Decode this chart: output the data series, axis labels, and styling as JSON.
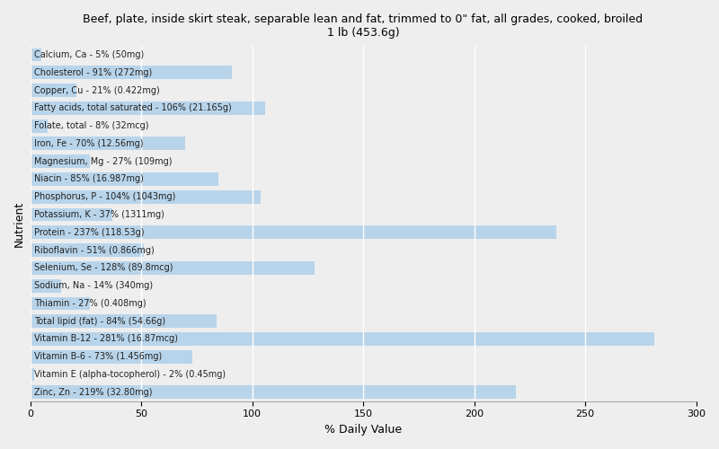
{
  "title": "Beef, plate, inside skirt steak, separable lean and fat, trimmed to 0\" fat, all grades, cooked, broiled\n1 lb (453.6g)",
  "xlabel": "% Daily Value",
  "ylabel": "Nutrient",
  "xlim": [
    0,
    300
  ],
  "xticks": [
    0,
    50,
    100,
    150,
    200,
    250,
    300
  ],
  "background_color": "#eeeeee",
  "bar_color": "#b8d4ea",
  "grid_color": "#ffffff",
  "nutrients": [
    {
      "label": "Calcium, Ca - 5% (50mg)",
      "value": 5
    },
    {
      "label": "Cholesterol - 91% (272mg)",
      "value": 91
    },
    {
      "label": "Copper, Cu - 21% (0.422mg)",
      "value": 21
    },
    {
      "label": "Fatty acids, total saturated - 106% (21.165g)",
      "value": 106
    },
    {
      "label": "Folate, total - 8% (32mcg)",
      "value": 8
    },
    {
      "label": "Iron, Fe - 70% (12.56mg)",
      "value": 70
    },
    {
      "label": "Magnesium, Mg - 27% (109mg)",
      "value": 27
    },
    {
      "label": "Niacin - 85% (16.987mg)",
      "value": 85
    },
    {
      "label": "Phosphorus, P - 104% (1043mg)",
      "value": 104
    },
    {
      "label": "Potassium, K - 37% (1311mg)",
      "value": 37
    },
    {
      "label": "Protein - 237% (118.53g)",
      "value": 237
    },
    {
      "label": "Riboflavin - 51% (0.866mg)",
      "value": 51
    },
    {
      "label": "Selenium, Se - 128% (89.8mcg)",
      "value": 128
    },
    {
      "label": "Sodium, Na - 14% (340mg)",
      "value": 14
    },
    {
      "label": "Thiamin - 27% (0.408mg)",
      "value": 27
    },
    {
      "label": "Total lipid (fat) - 84% (54.66g)",
      "value": 84
    },
    {
      "label": "Vitamin B-12 - 281% (16.87mcg)",
      "value": 281
    },
    {
      "label": "Vitamin B-6 - 73% (1.456mg)",
      "value": 73
    },
    {
      "label": "Vitamin E (alpha-tocopherol) - 2% (0.45mg)",
      "value": 2
    },
    {
      "label": "Zinc, Zn - 219% (32.80mg)",
      "value": 219
    }
  ],
  "title_fontsize": 9,
  "label_fontsize": 7,
  "axis_label_fontsize": 9,
  "tick_fontsize": 8
}
